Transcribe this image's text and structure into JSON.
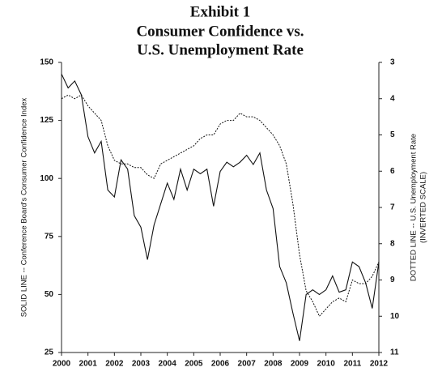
{
  "chart_data": {
    "type": "line",
    "title": [
      "Exhibit 1",
      "Consumer Confidence vs.",
      "U.S. Unemployment Rate"
    ],
    "ylabel": "SOLID LINE -- Conference Board's Consumer Confidence Index",
    "y2label": [
      "DOTTED LINE -- U.S. Unemployment Rate",
      "(INVERTED SCALE)"
    ],
    "x": [
      2000,
      2000.25,
      2000.5,
      2000.75,
      2001,
      2001.25,
      2001.5,
      2001.75,
      2002,
      2002.25,
      2002.5,
      2002.75,
      2003,
      2003.25,
      2003.5,
      2003.75,
      2004,
      2004.25,
      2004.5,
      2004.75,
      2005,
      2005.25,
      2005.5,
      2005.75,
      2006,
      2006.25,
      2006.5,
      2006.75,
      2007,
      2007.25,
      2007.5,
      2007.75,
      2008,
      2008.25,
      2008.5,
      2008.75,
      2009,
      2009.25,
      2009.5,
      2009.75,
      2010,
      2010.25,
      2010.5,
      2010.75,
      2011,
      2011.25,
      2011.5,
      2011.75,
      2012
    ],
    "series": [
      {
        "name": "Consumer Confidence Index",
        "color": "#111111",
        "dashed": false,
        "values": [
          145,
          139,
          142,
          136,
          118,
          111,
          116,
          95,
          92,
          108,
          104,
          84,
          79,
          65,
          80,
          89,
          98,
          91,
          104,
          95,
          104,
          102,
          104,
          88,
          103,
          107,
          105,
          107,
          110,
          106,
          111,
          95,
          87,
          62,
          55,
          42,
          30,
          50,
          52,
          50,
          52,
          58,
          51,
          52,
          64,
          62,
          55,
          44,
          64
        ]
      },
      {
        "name": "U.S. Unemployment Rate",
        "color": "#111111",
        "dashed": true,
        "axis": "y2",
        "values": [
          4.0,
          3.9,
          4.0,
          3.9,
          4.2,
          4.4,
          4.6,
          5.3,
          5.7,
          5.8,
          5.8,
          5.9,
          5.9,
          6.1,
          6.2,
          5.8,
          5.7,
          5.6,
          5.5,
          5.4,
          5.3,
          5.1,
          5.0,
          5.0,
          4.7,
          4.6,
          4.6,
          4.4,
          4.5,
          4.5,
          4.6,
          4.8,
          5.0,
          5.3,
          5.8,
          6.9,
          8.3,
          9.3,
          9.6,
          10.0,
          9.8,
          9.6,
          9.5,
          9.6,
          9.0,
          9.1,
          9.1,
          8.9,
          8.5
        ]
      }
    ],
    "xlim": [
      2000,
      2012
    ],
    "xticks": [
      2000,
      2001,
      2002,
      2003,
      2004,
      2005,
      2006,
      2007,
      2008,
      2009,
      2010,
      2011,
      2012
    ],
    "ylim": [
      25,
      150
    ],
    "yticks": [
      25,
      50,
      75,
      100,
      125,
      150
    ],
    "y2lim": [
      3,
      11
    ],
    "y2ticks": [
      3,
      4,
      5,
      6,
      7,
      8,
      9,
      10,
      11
    ],
    "y2_inverted": true
  }
}
